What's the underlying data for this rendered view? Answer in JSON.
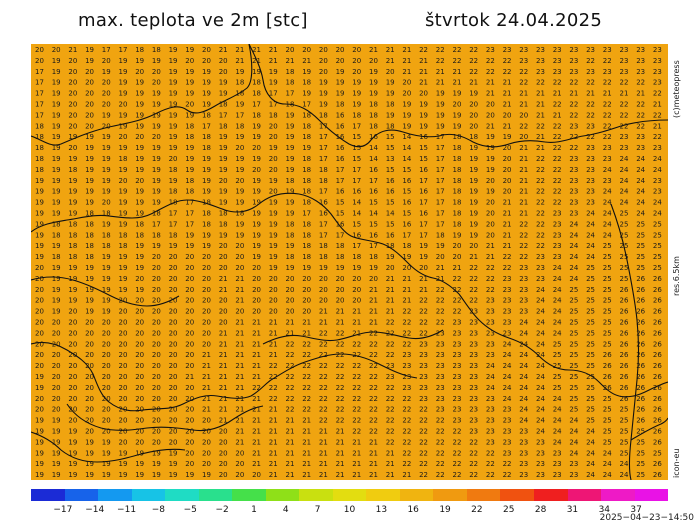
{
  "header": {
    "title": "max. teplota ve 2m [stc]",
    "date": "štvrtok 24.04.2025"
  },
  "side": {
    "copyright": "(c)meteopress",
    "resolution": "res.6.5km",
    "model": "icon-eu"
  },
  "footer": {
    "timestamp": "2025−04−23−14:50"
  },
  "colors": {
    "map_background": "#f0a410",
    "borders": "#111111"
  },
  "legend": {
    "ticks": [
      "−17",
      "−14",
      "−11",
      "−8",
      "−5",
      "−2",
      "1",
      "4",
      "7",
      "10",
      "13",
      "16",
      "19",
      "22",
      "25",
      "28",
      "31",
      "34",
      "37"
    ],
    "colors": [
      "#1b2bd6",
      "#1763ea",
      "#1499f0",
      "#17c3e6",
      "#1fdcc4",
      "#29e08d",
      "#45e04a",
      "#8fe018",
      "#c9e010",
      "#e3dd10",
      "#f0cc10",
      "#f0b410",
      "#f09a10",
      "#f07a10",
      "#f05210",
      "#ef1f1f",
      "#ee1675",
      "#ee1ac6",
      "#e912e6"
    ]
  },
  "grid": {
    "rows": [
      "20 20 21 19 17 17 18 18 19 19 20 21 21 21 21 20 20 20 20 20 21 21 21 22 22 22 22 23 23 23 23 23 23 23 23 23 23 23",
      "20 19 20 19 20 19 19 19 19 20 20 20 21 21 21 21 21 20 20 20 20 21 21 21 22 22 22 22 22 23 23 23 23 22 22 23 23 23",
      "17 19 20 20 19 19 20 20 19 19 19 20 19 19 19 18 19 20 19 20 19 20 21 21 21 21 22 22 22 22 23 23 23 23 23 23 23 23",
      "17 19 20 20 20 19 19 20 19 19 19 19 18 18 19 18 18 19 19 19 19 19 20 21 21 21 21 21 21 22 22 22 22 22 22 22 22 23",
      "17 19 20 20 20 19 19 19 19 19 19 19 18 18 17 17 19 19 19 19 19 19 20 20 19 19 19 21 21 21 21 21 21 21 21 21 21 22",
      "17 19 20 20 20 20 19 19 19 20 19 18 19 17 17 18 17 19 18 19 18 18 19 19 19 20 20 20 21 21 21 22 22 22 22 22 22 21",
      "17 19 20 20 19 19 19 19 19 19 18 17 17 18 18 19 18 18 16 18 18 19 19 19 19 19 20 20 20 20 21 21 22 22 22 22 22 22",
      "18 19 20 20 20 19 19 19 19 18 17 18 18 19 20 19 18 17 16 17 18 18 19 19 19 19 20 21 21 22 22 22 23 23 22 22 22 21",
      "18 19 19 19 19 20 20 20 19 18 18 19 19 19 20 19 18 17 16 15 16 15 14 16 17 18 18 19 19 20 21 22 22 22 22 23 23 22",
      "18 19 20 19 19 19 19 19 19 19 18 19 20 20 19 19 19 17 16 15 14 15 14 15 17 18 19 19 20 21 21 22 22 23 23 23 23 23",
      "18 19 19 19 19 18 19 19 20 19 19 19 19 19 20 19 18 17 16 15 14 13 14 15 17 18 19 19 20 21 22 22 23 23 23 24 24 24",
      "18 19 18 19 19 19 19 19 18 19 19 19 19 20 20 19 18 18 17 17 16 15 15 16 17 18 19 19 20 21 22 22 23 23 24 24 24 24",
      "19 19 19 19 19 20 20 19 19 18 19 20 20 19 19 18 18 18 17 17 17 16 16 17 17 18 19 20 20 21 22 22 23 23 23 24 24 23",
      "19 19 19 19 19 19 19 19 18 18 19 19 19 19 20 19 18 17 16 16 16 16 15 16 17 18 19 19 20 21 22 22 23 23 24 24 24 23",
      "19 19 19 19 20 19 19 19 18 17 18 19 19 19 19 19 18 16 15 14 15 15 16 17 17 18 19 20 21 21 22 22 23 23 24 24 24 24",
      "19 19 19 18 18 19 19 18 17 17 18 18 18 19 19 19 17 16 15 14 14 14 15 16 17 18 19 20 21 21 22 23 23 24 24 25 24 24",
      "19 18 18 18 19 19 18 17 17 17 18 18 19 19 19 18 18 17 16 15 15 15 16 17 17 18 19 20 21 22 22 23 24 24 24 25 25 25",
      "19 18 18 18 18 18 18 18 18 19 19 19 19 19 19 18 18 17 17 16 16 16 17 17 18 19 19 20 21 22 22 23 24 24 24 25 25 25",
      "19 19 18 18 18 18 19 19 19 19 19 20 20 19 19 19 18 18 18 17 17 18 18 19 19 20 20 21 21 22 22 23 24 24 25 25 25 25",
      "19 18 18 18 19 19 19 20 20 20 20 20 20 19 19 18 18 18 18 18 18 19 19 19 20 20 21 21 22 22 23 23 24 24 25 25 25 25",
      "20 19 19 19 19 19 19 20 20 20 20 20 20 20 19 19 19 19 19 19 19 20 20 20 21 21 22 22 22 23 23 24 24 25 25 25 25 25",
      "20 19 19 19 19 19 20 20 20 20 20 21 21 20 20 20 20 20 20 20 20 21 21 21 21 22 22 22 23 23 23 24 24 25 25 25 26 26",
      "20 19 19 19 19 19 19 20 20 20 20 21 21 20 20 20 20 20 20 20 21 21 21 21 22 22 22 22 23 23 24 24 25 25 25 26 26 26",
      "20 19 19 19 19 20 20 20 20 20 20 20 21 20 20 20 20 20 20 20 21 21 21 22 22 22 22 23 23 23 24 24 25 25 25 26 26 26",
      "20 19 20 19 19 20 20 20 20 20 20 20 20 20 20 20 20 21 21 21 21 21 22 22 22 22 23 23 23 23 24 24 25 25 25 26 26 26",
      "20 20 20 20 20 20 20 20 20 20 20 20 21 21 21 21 21 21 21 21 21 22 22 22 22 23 23 23 23 24 24 24 25 25 25 26 26 26",
      "20 20 20 20 20 20 20 20 20 20 20 21 21 21 21 21 21 22 22 21 22 22 22 22 23 23 23 23 23 24 24 24 25 25 25 26 26 26",
      "20 20 20 20 20 20 20 20 20 20 20 21 21 21 21 22 22 22 22 22 22 22 22 23 23 23 23 23 24 24 24 25 25 25 25 26 26 26",
      "20 20 20 20 20 20 20 20 20 20 21 21 21 21 21 22 22 22 22 22 22 22 23 23 23 23 23 23 24 24 24 25 25 25 26 26 26 26",
      "20 20 20 20 20 20 20 20 20 20 21 21 21 21 22 22 22 22 22 22 22 23 23 23 23 23 23 24 24 24 24 25 25 25 26 26 26 26",
      "19 20 20 20 20 20 20 20 20 21 21 21 21 21 22 22 22 22 22 22 22 23 23 23 23 23 23 24 24 24 24 25 25 25 26 26 26 26",
      "19 20 20 20 20 20 20 20 20 20 21 21 21 22 22 22 22 22 22 22 22 22 23 23 23 23 23 24 24 24 24 25 25 25 26 26 26 26",
      "20 20 20 20 20 20 20 20 20 20 21 21 21 21 22 22 22 22 22 22 22 22 22 23 23 23 23 23 24 24 24 24 25 25 25 26 26 26",
      "20 20 20 20 20 20 20 20 20 20 21 21 21 21 21 22 22 22 22 22 22 22 22 22 23 23 23 23 23 24 24 24 25 25 25 25 26 26",
      "19 19 20 20 20 20 20 20 20 20 20 21 21 21 21 21 21 22 22 22 22 22 22 22 22 23 23 23 23 24 24 24 24 25 25 25 26 26",
      "19 19 19 20 20 20 20 20 20 20 20 20 21 21 21 21 21 21 21 22 22 22 22 22 22 22 23 23 23 23 24 24 24 24 25 25 25 26",
      "19 19 19 19 19 20 20 20 20 20 20 20 21 21 21 21 21 21 21 21 21 22 22 22 22 22 22 23 23 23 23 24 24 24 25 25 25 26",
      "19 19 19 19 19 19 19 19 19 20 20 20 20 21 21 21 21 21 21 21 21 21 22 22 22 22 22 22 23 23 23 23 24 24 24 25 25 25",
      "19 19 19 19 19 19 19 19 19 20 20 20 20 21 21 21 21 21 21 21 21 21 22 22 22 22 22 22 22 23 23 23 23 24 24 24 25 26",
      "19 19 19 19 19 19 19 19 19 19 19 20 20 20 21 21 21 21 21 21 21 21 21 22 22 22 22 22 22 23 23 23 23 24 24 24 25 26"
    ]
  }
}
